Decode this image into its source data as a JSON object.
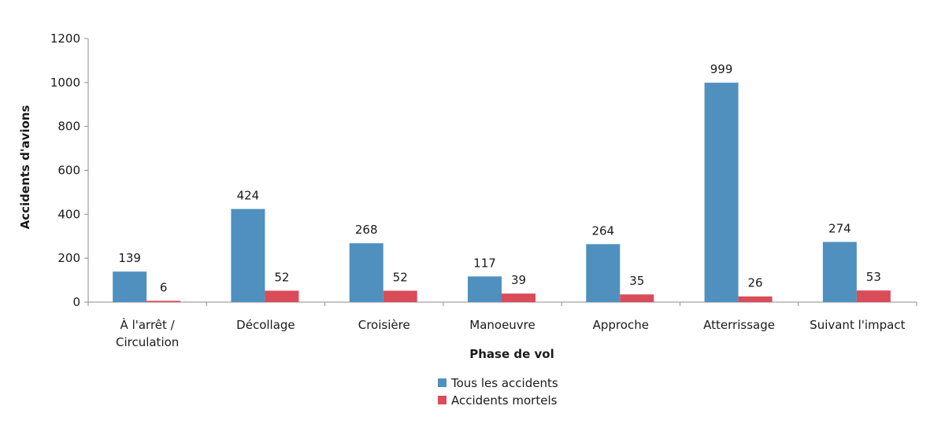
{
  "chart_data": {
    "type": "bar",
    "title": "",
    "xlabel": "Phase de vol",
    "ylabel": "Accidents d'avions",
    "ylim": [
      0,
      1200
    ],
    "yticks": [
      0,
      200,
      400,
      600,
      800,
      1000,
      1200
    ],
    "grid": false,
    "legend_position": "bottom",
    "categories": [
      [
        "À l'arrêt /",
        "Circulation"
      ],
      [
        "Décollage"
      ],
      [
        "Croisière"
      ],
      [
        "Manoeuvre"
      ],
      [
        "Approche"
      ],
      [
        "Atterrissage"
      ],
      [
        "Suivant l'impact"
      ]
    ],
    "series": [
      {
        "name": "Tous les accidents",
        "color": "#4f90bf",
        "values": [
          139,
          424,
          268,
          117,
          264,
          999,
          274
        ]
      },
      {
        "name": "Accidents mortels",
        "color": "#d94c5a",
        "values": [
          6,
          52,
          52,
          39,
          35,
          26,
          53
        ]
      }
    ]
  }
}
